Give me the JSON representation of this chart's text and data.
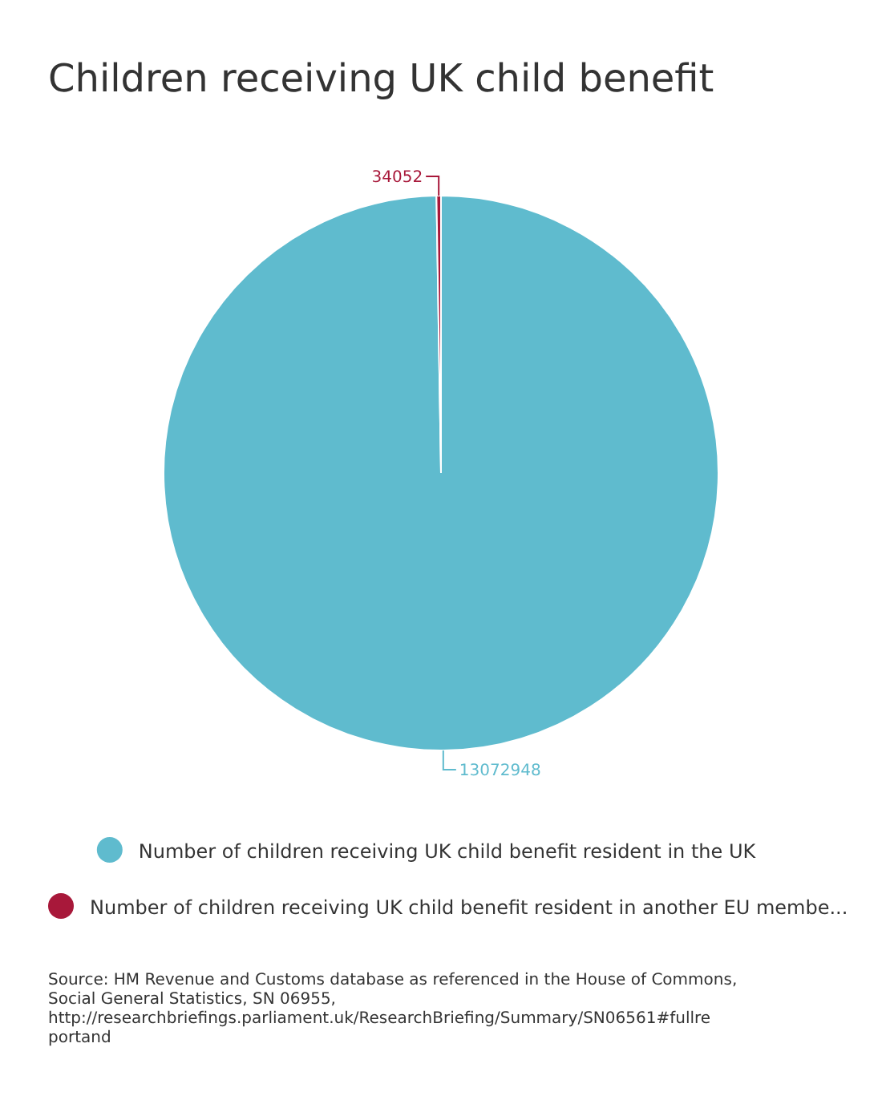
{
  "chart_data": {
    "type": "pie",
    "title": "Children receiving UK child benefit",
    "categories": [
      "Number of children receiving UK child benefit resident in the UK",
      "Number of children receiving UK child benefit resident in another EU membe..."
    ],
    "values": [
      13072948,
      34052
    ],
    "colors": [
      "#5fbbce",
      "#a8183a"
    ],
    "data_labels": true,
    "legend": "bottom",
    "annotations": [
      "Source: HM Revenue and Customs database as referenced in the House of Commons, Social General Statistics, SN 06955, http://researchbriefings.parliament.uk/ResearchBriefing/Summary/SN06561#fullreportand"
    ]
  }
}
